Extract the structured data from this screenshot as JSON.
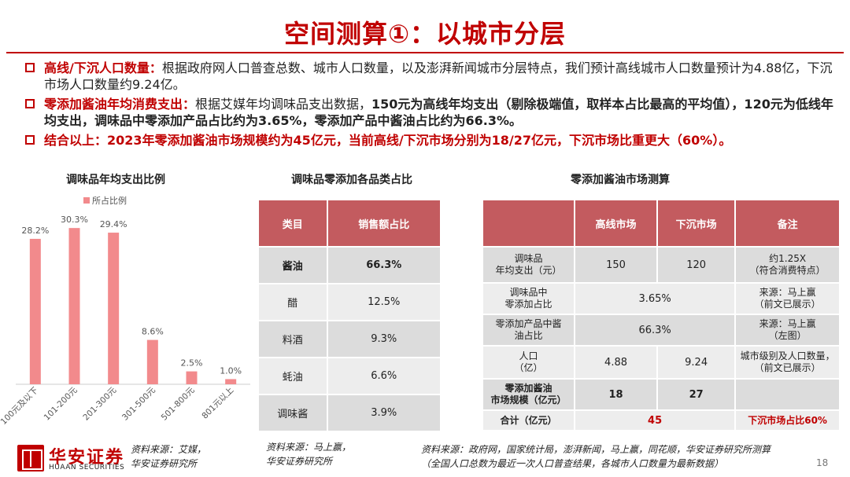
{
  "title": "空间测算①：以城市分层",
  "bullets": [
    {
      "lead": "高线/下沉人口数量：",
      "text": "根据政府网人口普查总数、城市人口数量，以及澎湃新闻城市分层特点，我们预计高线城市人口数量预计为4.88亿，下沉市场人口数量约9.24亿。"
    },
    {
      "lead": "零添加酱油年均消费支出：",
      "text_a": "根据艾媒年均调味品支出数据，",
      "text_b": "150元为高线年均支出（剔除极端值，取样本占比最高的平均值），120元为低线年均支出，调味品中零添加产品占比约为3.65%，零添加产品中酱油占比约为66.3%。"
    },
    {
      "lead": "结合以上：",
      "text": "2023年零添加酱油市场规模约为45亿元，当前高线/下沉市场分别为18/27亿元，下沉市场比重更大（60%）。"
    }
  ],
  "chart_section_title": "调味品年均支出比例",
  "chart_data": {
    "type": "bar",
    "legend": [
      "所占比例"
    ],
    "legend_position": "top-left",
    "categories": [
      "100元及以下",
      "101-200元",
      "201-300元",
      "301-500元",
      "501-800元",
      "801元以上"
    ],
    "values": [
      28.2,
      30.3,
      29.4,
      8.6,
      2.5,
      1.0
    ],
    "value_labels": [
      "28.2%",
      "30.3%",
      "29.4%",
      "8.6%",
      "2.5%",
      "1.0%"
    ],
    "ylim": [
      0,
      32
    ],
    "grid": false,
    "bar_color": "#f28a8c"
  },
  "table1_title": "调味品零添加各品类占比",
  "table1": {
    "headers": [
      "类目",
      "销售额占比"
    ],
    "rows": [
      [
        "酱油",
        "66.3%"
      ],
      [
        "醋",
        "12.5%"
      ],
      [
        "料酒",
        "9.3%"
      ],
      [
        "蚝油",
        "6.6%"
      ],
      [
        "调味酱",
        "3.9%"
      ]
    ]
  },
  "table2_title": "零添加酱油市场测算",
  "table2": {
    "headers": [
      "",
      "高线市场",
      "下沉市场",
      "备注"
    ],
    "r1": {
      "label": "调味品\n年均支出（元）",
      "high": "150",
      "low": "120",
      "note": "约1.25X\n（符合消费特点）"
    },
    "r2": {
      "label": "调味品中\n零添加占比",
      "merged": "3.65%",
      "note": "来源：马上赢\n（前文已展示）"
    },
    "r3": {
      "label": "零添加产品中酱\n油占比",
      "merged": "66.3%",
      "note": "来源：马上赢\n（左图）"
    },
    "r4": {
      "label": "人口\n（亿）",
      "high": "4.88",
      "low": "9.24",
      "note": "城市级别及人口数量，\n（前文已展示）"
    },
    "r5": {
      "label": "零添加酱油\n市场规模（亿元）",
      "high": "18",
      "low": "27",
      "note": ""
    },
    "r6": {
      "label": "合计（亿元）",
      "merged": "45",
      "note": "下沉市场占比60%"
    }
  },
  "sources": {
    "chart": "资料来源：艾媒，\n华安证券研究所",
    "table1": "资料来源：马上赢，\n华安证券研究所",
    "table2": "资料来源：政府网，国家统计局，澎湃新闻，马上赢，同花顺，华安证券研究所测算\n（全国人口总数为最近一次人口普查结果，各城市人口数量为最新数据）"
  },
  "logo": {
    "cn": "华安证券",
    "en": "HUAAN SECURITIES"
  },
  "page_number": "18"
}
